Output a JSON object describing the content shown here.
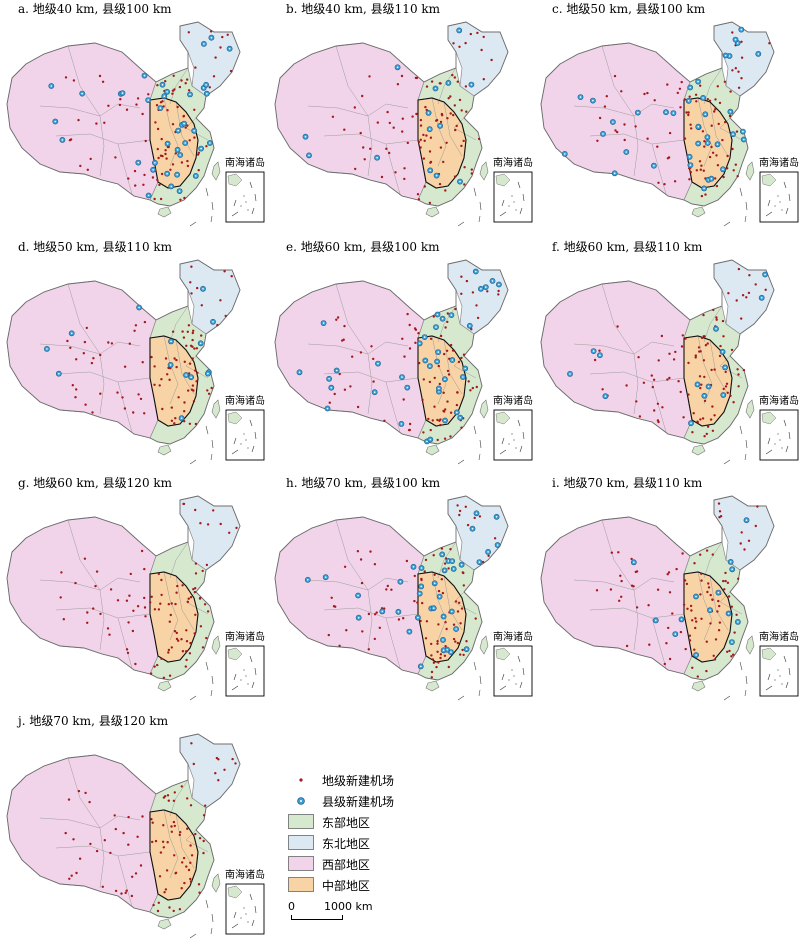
{
  "panels": [
    {
      "id": "a",
      "title": "a. 地级40 km, 县级100 km",
      "inset_label": "南海诸岛",
      "county_airports": "many"
    },
    {
      "id": "b",
      "title": "b. 地级40 km, 县级110 km",
      "inset_label": "南海诸岛",
      "county_airports": "few"
    },
    {
      "id": "c",
      "title": "c. 地级50 km, 县级100 km",
      "inset_label": "南海诸岛",
      "county_airports": "many"
    },
    {
      "id": "d",
      "title": "d. 地级50 km, 县级110 km",
      "inset_label": "南海诸岛",
      "county_airports": "few"
    },
    {
      "id": "e",
      "title": "e. 地级60 km, 县级100 km",
      "inset_label": "南海诸岛",
      "county_airports": "many"
    },
    {
      "id": "f",
      "title": "f. 地级60 km, 县级110 km",
      "inset_label": "南海诸岛",
      "county_airports": "few"
    },
    {
      "id": "g",
      "title": "g. 地级60 km, 县级120 km",
      "inset_label": "南海诸岛",
      "county_airports": "none"
    },
    {
      "id": "h",
      "title": "h. 地级70 km, 县级100 km",
      "inset_label": "南海诸岛",
      "county_airports": "many"
    },
    {
      "id": "i",
      "title": "i. 地级70 km, 县级110 km",
      "inset_label": "南海诸岛",
      "county_airports": "few"
    },
    {
      "id": "j",
      "title": "j. 地级70 km, 县级120 km",
      "inset_label": "南海诸岛",
      "county_airports": "none"
    }
  ],
  "legend": {
    "prefecture_airport": "地级新建机场",
    "county_airport": "县级新建机场",
    "east": "东部地区",
    "northeast": "东北地区",
    "west": "西部地区",
    "central": "中部地区"
  },
  "scale": {
    "zero": "0",
    "distance": "1000 km"
  },
  "colors": {
    "east": "#d6e9cf",
    "northeast": "#dde9f2",
    "west": "#f1d4ea",
    "central": "#f7d3a6",
    "prefecture_dot": "#a3191c",
    "county_dot": "#3aa0d8"
  }
}
